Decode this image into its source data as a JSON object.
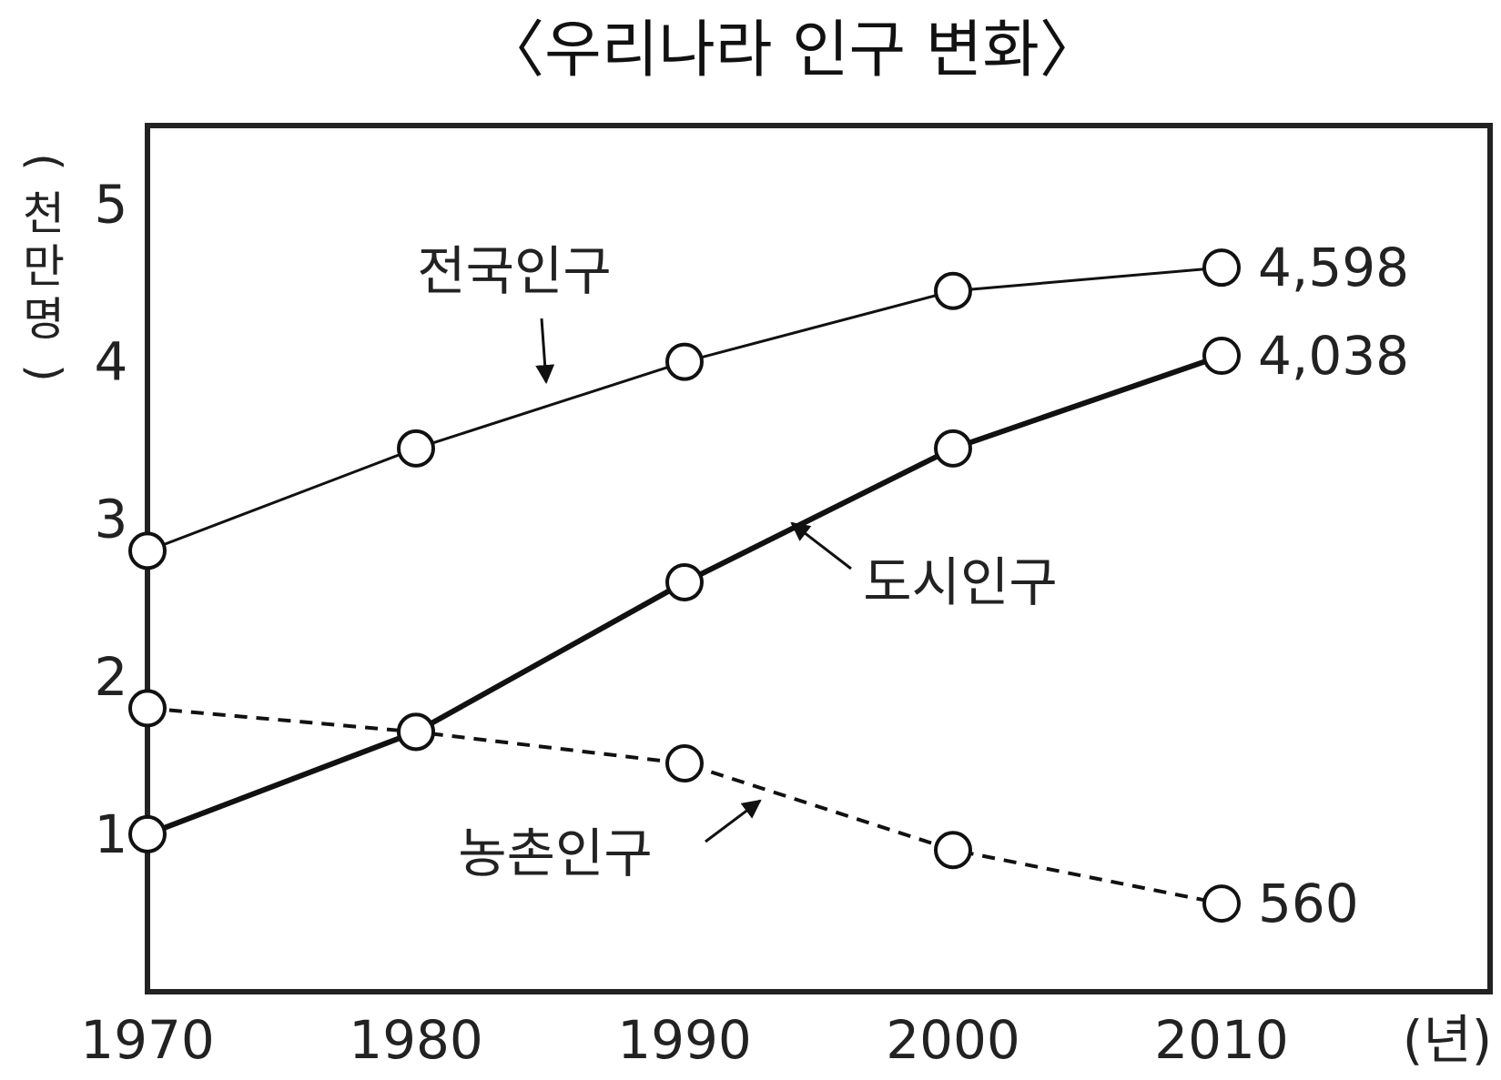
{
  "chart_data": {
    "type": "line",
    "title": "〈우리나라 인구 변화〉",
    "xlabel": "(년)",
    "ylabel": "(천만 명)",
    "x": [
      1970,
      1980,
      1990,
      2000,
      2010
    ],
    "xlim": [
      1970,
      2020
    ],
    "ylim": [
      0,
      5.5
    ],
    "yticks": [
      1,
      2,
      3,
      4,
      5
    ],
    "grid": false,
    "series": [
      {
        "name": "전국인구",
        "values": [
          2.8,
          3.45,
          4.0,
          4.45,
          4.598
        ],
        "style": "thin-solid",
        "end_label": "4,598"
      },
      {
        "name": "도시인구",
        "values": [
          1.0,
          1.65,
          2.6,
          3.45,
          4.038
        ],
        "style": "thick-solid",
        "end_label": "4,038"
      },
      {
        "name": "농촌인구",
        "values": [
          1.8,
          1.65,
          1.45,
          0.9,
          0.56
        ],
        "style": "dashed",
        "end_label": "560"
      }
    ]
  }
}
